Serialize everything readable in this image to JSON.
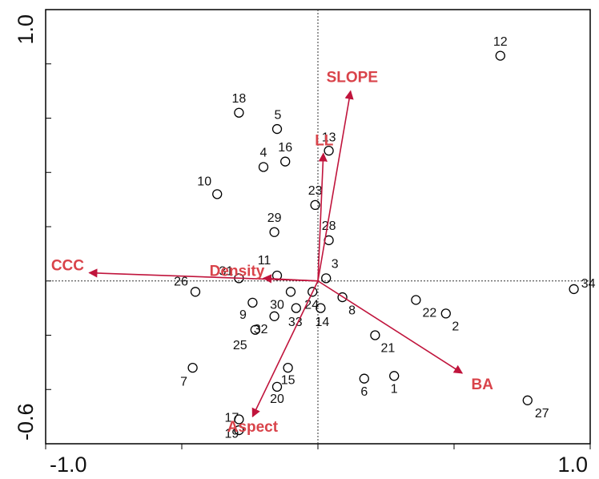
{
  "chart_data": {
    "type": "biplot",
    "xlim": [
      -1.0,
      1.0
    ],
    "ylim": [
      -0.6,
      1.0
    ],
    "xticks": [
      {
        "value": -1.0,
        "label": "-1.0"
      },
      {
        "value": -0.5,
        "label": null
      },
      {
        "value": 0,
        "label": null
      },
      {
        "value": 0.5,
        "label": null
      },
      {
        "value": 1.0,
        "label": "1.0"
      }
    ],
    "yticks": [
      {
        "value": -0.6,
        "label": "-0.6"
      },
      {
        "value": -0.4,
        "label": null
      },
      {
        "value": -0.2,
        "label": null
      },
      {
        "value": 0,
        "label": null
      },
      {
        "value": 0.2,
        "label": null
      },
      {
        "value": 0.4,
        "label": null
      },
      {
        "value": 0.6,
        "label": null
      },
      {
        "value": 0.8,
        "label": null
      },
      {
        "value": 1.0,
        "label": "1.0"
      }
    ],
    "points": {
      "labels": [
        "12",
        "18",
        "5",
        "16",
        "4",
        "13",
        "10",
        "23",
        "29",
        "28",
        "11",
        "31",
        "3",
        "26",
        "34",
        "8",
        "9",
        "30",
        "24",
        "33",
        "14",
        "32",
        "25",
        "22",
        "2",
        "21",
        "15",
        "20",
        "6",
        "1",
        "7",
        "27",
        "17",
        "19"
      ],
      "x": [
        0.67,
        -0.29,
        -0.15,
        -0.12,
        -0.2,
        0.04,
        -0.37,
        -0.01,
        -0.16,
        0.04,
        -0.15,
        -0.29,
        0.03,
        -0.45,
        0.94,
        0.09,
        -0.24,
        -0.1,
        -0.02,
        -0.08,
        0.01,
        -0.16,
        -0.23,
        0.36,
        0.47,
        0.21,
        -0.11,
        -0.15,
        0.17,
        0.28,
        -0.46,
        0.77,
        -0.29,
        -0.29
      ],
      "y": [
        0.83,
        0.62,
        0.56,
        0.44,
        0.42,
        0.48,
        0.32,
        0.28,
        0.18,
        0.15,
        0.02,
        0.01,
        0.01,
        -0.04,
        -0.03,
        -0.06,
        -0.08,
        -0.04,
        -0.04,
        -0.1,
        -0.1,
        -0.13,
        -0.18,
        -0.07,
        -0.12,
        -0.2,
        -0.32,
        -0.39,
        -0.36,
        -0.35,
        -0.32,
        -0.44,
        -0.51,
        -0.55
      ]
    },
    "vectors": [
      {
        "name": "SLOPE",
        "x": 0.12,
        "y": 0.7
      },
      {
        "name": "LL",
        "x": 0.02,
        "y": 0.47
      },
      {
        "name": "CCC",
        "x": -0.84,
        "y": 0.03
      },
      {
        "name": "Density",
        "x": -0.2,
        "y": 0.01
      },
      {
        "name": "BA",
        "x": 0.53,
        "y": -0.34
      },
      {
        "name": "Aspect",
        "x": -0.24,
        "y": -0.5
      }
    ],
    "vector_color": "#c0143c",
    "zero_lines": true
  }
}
